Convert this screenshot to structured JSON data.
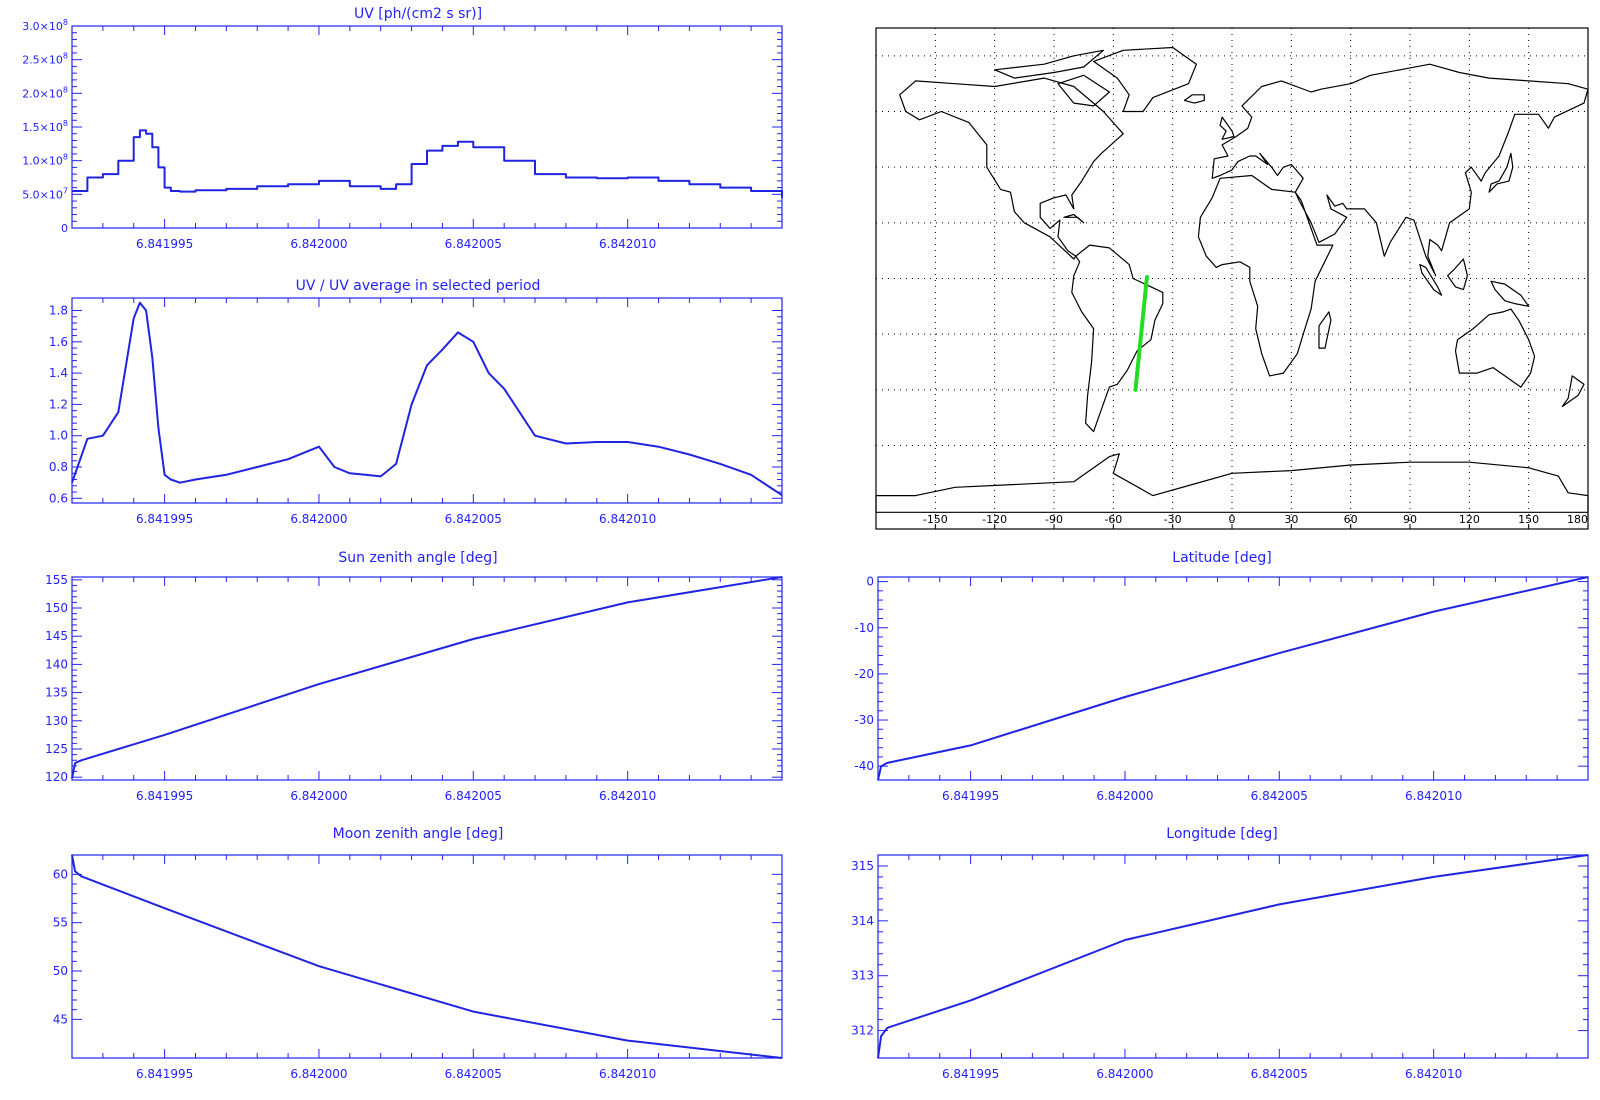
{
  "colors": {
    "axis": "#2222ff",
    "trace": "#1f24e0",
    "map": "#000000",
    "track": "#22dd22",
    "grid": "#000000"
  },
  "shared_x_ticks": [
    "6.841995",
    "6.842000",
    "6.842005",
    "6.842010"
  ],
  "shared_x_tick_values": [
    6.841995,
    6.842,
    6.842005,
    6.84201
  ],
  "shared_x_range": [
    6.841992,
    6.842015
  ],
  "chart_data": [
    {
      "id": "uv",
      "type": "line",
      "style": "histogram",
      "title": "UV [ph/(cm2 s sr)]",
      "ylim": [
        0,
        300000000.0
      ],
      "yticks": [
        0,
        50000000.0,
        100000000.0,
        150000000.0,
        200000000.0,
        250000000.0,
        300000000.0
      ],
      "ytick_labels": [
        {
          "text": "0",
          "mant": "0",
          "exp": ""
        },
        {
          "text": "5.0×10^7",
          "mant": "5.0×10",
          "exp": "7"
        },
        {
          "text": "1.0×10^8",
          "mant": "1.0×10",
          "exp": "8"
        },
        {
          "text": "1.5×10^8",
          "mant": "1.5×10",
          "exp": "8"
        },
        {
          "text": "2.0×10^8",
          "mant": "2.0×10",
          "exp": "8"
        },
        {
          "text": "2.5×10^8",
          "mant": "2.5×10",
          "exp": "8"
        },
        {
          "text": "3.0×10^8",
          "mant": "3.0×10",
          "exp": "8"
        }
      ],
      "x": [
        6.841992,
        6.8419925,
        6.841993,
        6.8419935,
        6.841994,
        6.8419942,
        6.8419944,
        6.8419946,
        6.8419948,
        6.841995,
        6.8419952,
        6.8419955,
        6.841996,
        6.841997,
        6.841998,
        6.841999,
        6.842,
        6.842001,
        6.842002,
        6.8420025,
        6.842003,
        6.8420035,
        6.842004,
        6.8420045,
        6.842005,
        6.842006,
        6.842007,
        6.842008,
        6.842009,
        6.84201,
        6.842011,
        6.842012,
        6.842013,
        6.842014,
        6.842015
      ],
      "values": [
        55000000.0,
        75000000.0,
        80000000.0,
        100000000.0,
        135000000.0,
        145000000.0,
        140000000.0,
        120000000.0,
        90000000.0,
        60000000.0,
        55000000.0,
        54000000.0,
        56000000.0,
        58000000.0,
        62000000.0,
        65000000.0,
        70000000.0,
        62000000.0,
        58000000.0,
        65000000.0,
        95000000.0,
        115000000.0,
        122000000.0,
        128000000.0,
        120000000.0,
        100000000.0,
        80000000.0,
        75000000.0,
        74000000.0,
        75000000.0,
        70000000.0,
        65000000.0,
        60000000.0,
        55000000.0,
        45000000.0
      ]
    },
    {
      "id": "uv-ratio",
      "type": "line",
      "title": "UV / UV average in selected period",
      "ylim": [
        0.57,
        1.88
      ],
      "yticks": [
        0.6,
        0.8,
        1.0,
        1.2,
        1.4,
        1.6,
        1.8
      ],
      "ytick_labels": [
        "0.6",
        "0.8",
        "1.0",
        "1.2",
        "1.4",
        "1.6",
        "1.8"
      ],
      "x": [
        6.841992,
        6.8419925,
        6.841993,
        6.8419935,
        6.841994,
        6.8419942,
        6.8419944,
        6.8419946,
        6.8419948,
        6.841995,
        6.8419952,
        6.8419955,
        6.841996,
        6.841997,
        6.841998,
        6.841999,
        6.842,
        6.8420005,
        6.842001,
        6.8420015,
        6.842002,
        6.8420025,
        6.842003,
        6.8420035,
        6.842004,
        6.8420045,
        6.842005,
        6.8420055,
        6.842006,
        6.842007,
        6.842008,
        6.842009,
        6.84201,
        6.842011,
        6.842012,
        6.842013,
        6.842014,
        6.842015
      ],
      "values": [
        0.7,
        0.98,
        1.0,
        1.15,
        1.75,
        1.85,
        1.8,
        1.5,
        1.05,
        0.75,
        0.72,
        0.7,
        0.72,
        0.75,
        0.8,
        0.85,
        0.93,
        0.8,
        0.76,
        0.75,
        0.74,
        0.82,
        1.2,
        1.45,
        1.55,
        1.66,
        1.6,
        1.4,
        1.3,
        1.0,
        0.95,
        0.96,
        0.96,
        0.93,
        0.88,
        0.82,
        0.75,
        0.62
      ]
    },
    {
      "id": "sun-zenith",
      "type": "line",
      "title": "Sun zenith angle [deg]",
      "ylim": [
        119.5,
        155.5
      ],
      "yticks": [
        120,
        125,
        130,
        135,
        140,
        145,
        150,
        155
      ],
      "ytick_labels": [
        "120",
        "125",
        "130",
        "135",
        "140",
        "145",
        "150",
        "155"
      ],
      "x": [
        6.841992,
        6.8419921,
        6.8419923,
        6.841995,
        6.842,
        6.842005,
        6.84201,
        6.842015
      ],
      "values": [
        119.8,
        122.5,
        123.0,
        127.5,
        136.5,
        144.5,
        151.0,
        155.5
      ]
    },
    {
      "id": "latitude",
      "type": "line",
      "title": "Latitude [deg]",
      "ylim": [
        -43,
        1
      ],
      "yticks": [
        -40,
        -30,
        -20,
        -10,
        0
      ],
      "ytick_labels": [
        "-40",
        "-30",
        "-20",
        "-10",
        "0"
      ],
      "x": [
        6.841992,
        6.8419921,
        6.8419923,
        6.841995,
        6.842,
        6.842005,
        6.84201,
        6.842015
      ],
      "values": [
        -43.0,
        -40.0,
        -39.3,
        -35.5,
        -25.0,
        -15.5,
        -6.5,
        1.0
      ]
    },
    {
      "id": "moon-zenith",
      "type": "line",
      "title": "Moon zenith angle [deg]",
      "ylim": [
        41,
        62
      ],
      "yticks": [
        45,
        50,
        55,
        60
      ],
      "ytick_labels": [
        "45",
        "50",
        "55",
        "60"
      ],
      "x": [
        6.841992,
        6.8419921,
        6.8419923,
        6.841995,
        6.842,
        6.842005,
        6.84201,
        6.842015
      ],
      "values": [
        62.0,
        60.3,
        59.8,
        56.5,
        50.5,
        45.8,
        42.8,
        41.0
      ]
    },
    {
      "id": "longitude",
      "type": "line",
      "title": "Longitude [deg]",
      "ylim": [
        311.5,
        315.2
      ],
      "yticks": [
        312,
        313,
        314,
        315
      ],
      "ytick_labels": [
        "312",
        "313",
        "314",
        "315"
      ],
      "x": [
        6.841992,
        6.8419921,
        6.8419923,
        6.841995,
        6.842,
        6.842005,
        6.84201,
        6.842015
      ],
      "values": [
        311.5,
        311.9,
        312.05,
        312.55,
        313.65,
        314.3,
        314.8,
        315.2
      ]
    }
  ],
  "map": {
    "xticks": [
      "-150",
      "-120",
      "-90",
      "-60",
      "-30",
      "0",
      "30",
      "60",
      "90",
      "120",
      "150",
      "180"
    ],
    "xtick_values": [
      -150,
      -120,
      -90,
      -60,
      -30,
      0,
      30,
      60,
      90,
      120,
      150,
      180
    ],
    "lon_range": [
      -180,
      180
    ],
    "lat_range": [
      -90,
      90
    ],
    "track": {
      "lon": [
        -43.0,
        -48.8
      ],
      "lat": [
        0.5,
        -40.0
      ]
    }
  }
}
